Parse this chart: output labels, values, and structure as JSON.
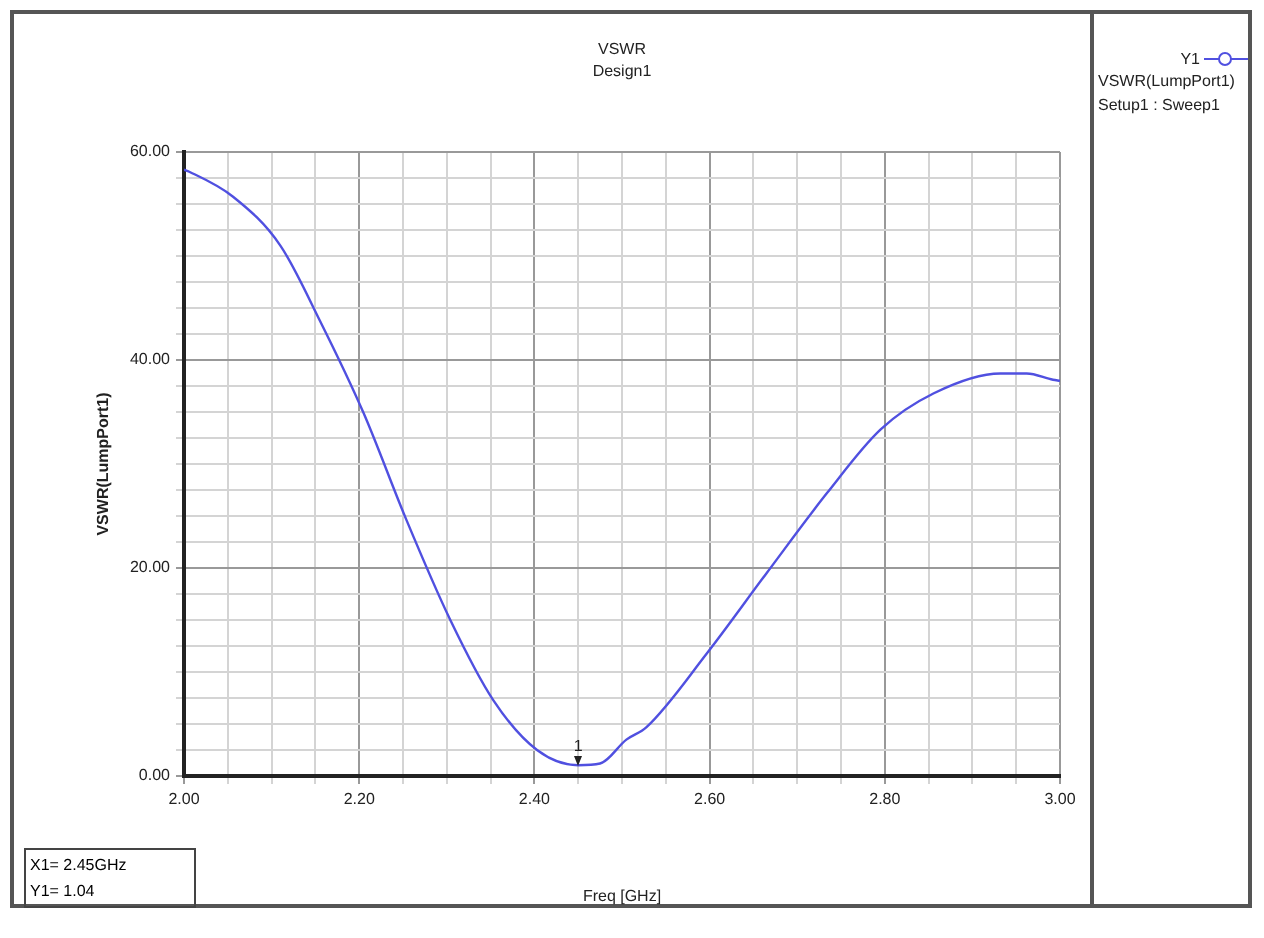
{
  "chart_data": {
    "type": "line",
    "title": "VSWR",
    "subtitle": "Design1",
    "xlabel": "Freq [GHz]",
    "ylabel": "VSWR(LumpPort1)",
    "x": [
      2.0,
      2.006,
      2.056,
      2.11,
      2.155,
      2.205,
      2.254,
      2.304,
      2.353,
      2.403,
      2.45,
      2.475,
      2.505,
      2.528,
      2.597,
      2.665,
      2.734,
      2.795,
      2.856,
      2.932,
      2.962,
      2.992,
      3.0
    ],
    "series": [
      {
        "name": "Y1",
        "color": "#5050e0",
        "values": [
          58.3,
          58.1,
          55.7,
          51.0,
          43.8,
          34.9,
          24.6,
          15.0,
          7.3,
          2.5,
          1.04,
          1.2,
          3.5,
          4.7,
          11.8,
          19.5,
          27.2,
          33.3,
          36.8,
          38.7,
          38.7,
          38.1,
          38.0
        ]
      }
    ],
    "xlim": [
      2.0,
      3.0
    ],
    "xticks": [
      {
        "value": 2.0,
        "label": "2.00"
      },
      {
        "value": 2.05,
        "label": null
      },
      {
        "value": 2.1,
        "label": null
      },
      {
        "value": 2.15,
        "label": null
      },
      {
        "value": 2.2,
        "label": "2.20"
      },
      {
        "value": 2.25,
        "label": null
      },
      {
        "value": 2.3,
        "label": null
      },
      {
        "value": 2.35,
        "label": null
      },
      {
        "value": 2.4,
        "label": "2.40"
      },
      {
        "value": 2.45,
        "label": null
      },
      {
        "value": 2.5,
        "label": null
      },
      {
        "value": 2.55,
        "label": null
      },
      {
        "value": 2.6,
        "label": "2.60"
      },
      {
        "value": 2.65,
        "label": null
      },
      {
        "value": 2.7,
        "label": null
      },
      {
        "value": 2.75,
        "label": null
      },
      {
        "value": 2.8,
        "label": "2.80"
      },
      {
        "value": 2.85,
        "label": null
      },
      {
        "value": 2.9,
        "label": null
      },
      {
        "value": 2.95,
        "label": null
      },
      {
        "value": 3.0,
        "label": "3.00"
      }
    ],
    "ylim": [
      0,
      60
    ],
    "yticks": [
      {
        "value": 0,
        "label": "0.00"
      },
      {
        "value": 2.5,
        "label": null
      },
      {
        "value": 5,
        "label": null
      },
      {
        "value": 7.5,
        "label": null
      },
      {
        "value": 10,
        "label": null
      },
      {
        "value": 12.5,
        "label": null
      },
      {
        "value": 15,
        "label": null
      },
      {
        "value": 17.5,
        "label": null
      },
      {
        "value": 20,
        "label": "20.00"
      },
      {
        "value": 22.5,
        "label": null
      },
      {
        "value": 25,
        "label": null
      },
      {
        "value": 27.5,
        "label": null
      },
      {
        "value": 30,
        "label": null
      },
      {
        "value": 32.5,
        "label": null
      },
      {
        "value": 35,
        "label": null
      },
      {
        "value": 37.5,
        "label": null
      },
      {
        "value": 40,
        "label": "40.00"
      },
      {
        "value": 42.5,
        "label": null
      },
      {
        "value": 45,
        "label": null
      },
      {
        "value": 47.5,
        "label": null
      },
      {
        "value": 50,
        "label": null
      },
      {
        "value": 52.5,
        "label": null
      },
      {
        "value": 55,
        "label": null
      },
      {
        "value": 57.5,
        "label": null
      },
      {
        "value": 60,
        "label": "60.00"
      }
    ],
    "grid": true,
    "legend": "right",
    "marker": "none",
    "line_style": "solid",
    "annotations": [
      {
        "text": "1",
        "x": 2.45,
        "y": 1.04
      },
      "X1= 2.45GHz",
      "Y1= 1.04",
      "VSWR(LumpPort1)",
      "Setup1 : Sweep1"
    ]
  }
}
